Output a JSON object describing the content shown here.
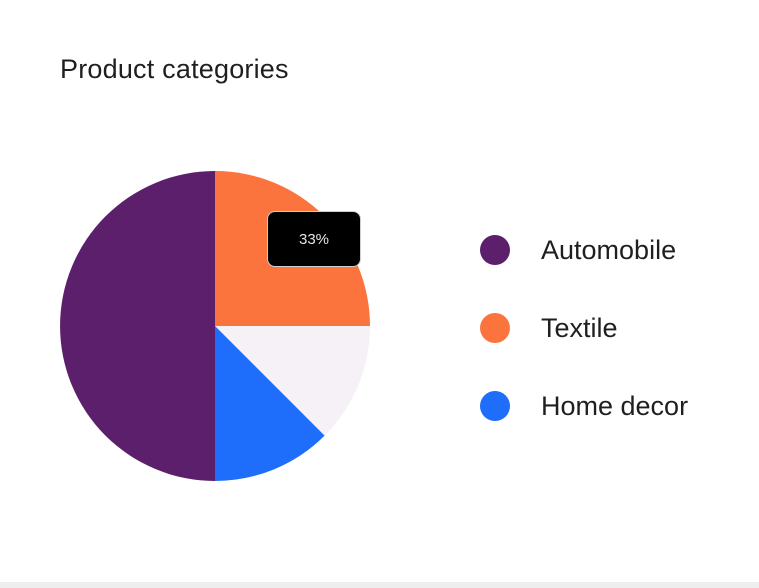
{
  "chart_data": {
    "type": "pie",
    "title": "Product categories",
    "slices": [
      {
        "label": "Automobile",
        "value": 50,
        "color": "#5b1f6b"
      },
      {
        "label": "Textile",
        "value": 25,
        "color": "#fb743e"
      },
      {
        "label": "",
        "value": 12.5,
        "color": "#f5f1f7"
      },
      {
        "label": "Home decor",
        "value": 12.5,
        "color": "#1e6dfb"
      }
    ],
    "legend": {
      "placement": "right",
      "items": [
        {
          "label": "Automobile",
          "color": "#5b1f6b"
        },
        {
          "label": "Textile",
          "color": "#fb743e"
        },
        {
          "label": "Home decor",
          "color": "#1e6dfb"
        }
      ]
    },
    "tooltip": {
      "text": "33%"
    }
  }
}
